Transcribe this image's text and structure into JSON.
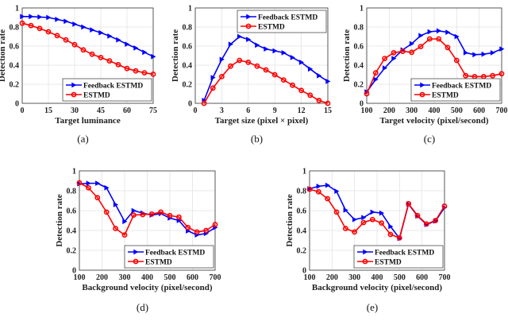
{
  "colors": {
    "feedback": "#0000ff",
    "estmd": "#ff0000",
    "grid": "#e3e3e3"
  },
  "chart_data": [
    {
      "type": "line",
      "caption": "(a)",
      "xlabel": "Target luminance",
      "ylabel": "Detection rate",
      "xlim": [
        0,
        75
      ],
      "ylim": [
        0,
        1
      ],
      "xticks": [
        0,
        15,
        30,
        45,
        60,
        75
      ],
      "yticks": [
        0,
        0.2,
        0.4,
        0.6,
        0.8,
        1
      ],
      "grid": true,
      "legend": "bottom-right",
      "x": [
        0,
        5,
        10,
        15,
        20,
        25,
        30,
        35,
        40,
        45,
        50,
        55,
        60,
        65,
        70,
        75
      ],
      "series": [
        {
          "name": "Feedback ESTMD",
          "marker": "triangle-right",
          "values": [
            0.91,
            0.91,
            0.905,
            0.9,
            0.88,
            0.86,
            0.83,
            0.8,
            0.77,
            0.74,
            0.705,
            0.665,
            0.62,
            0.58,
            0.535,
            0.49
          ]
        },
        {
          "name": "ESTMD",
          "marker": "circle",
          "values": [
            0.84,
            0.815,
            0.785,
            0.75,
            0.71,
            0.665,
            0.615,
            0.56,
            0.515,
            0.48,
            0.445,
            0.405,
            0.365,
            0.34,
            0.32,
            0.305
          ]
        }
      ]
    },
    {
      "type": "line",
      "caption": "(b)",
      "xlabel": "Target size (pixel × pixel)",
      "ylabel": "Detection rate",
      "xlim": [
        0,
        15
      ],
      "ylim": [
        0,
        1
      ],
      "xticks": [
        0,
        3,
        6,
        9,
        12,
        15
      ],
      "yticks": [
        0,
        0.2,
        0.4,
        0.6,
        0.8,
        1
      ],
      "grid": true,
      "legend": "top-right",
      "x": [
        1,
        2,
        3,
        4,
        5,
        6,
        7,
        8,
        9,
        10,
        11,
        12,
        13,
        14,
        15
      ],
      "series": [
        {
          "name": "Feedback ESTMD",
          "marker": "triangle-right",
          "values": [
            0.03,
            0.27,
            0.46,
            0.62,
            0.7,
            0.67,
            0.61,
            0.57,
            0.55,
            0.53,
            0.48,
            0.43,
            0.36,
            0.29,
            0.23
          ]
        },
        {
          "name": "ESTMD",
          "marker": "circle",
          "values": [
            0,
            0.16,
            0.28,
            0.39,
            0.45,
            0.43,
            0.39,
            0.35,
            0.3,
            0.245,
            0.19,
            0.135,
            0.085,
            0.03,
            0
          ]
        }
      ]
    },
    {
      "type": "line",
      "caption": "(c)",
      "xlabel": "Target velocity (pixel/second)",
      "ylabel": "Detection rate",
      "xlim": [
        100,
        700
      ],
      "ylim": [
        0,
        1
      ],
      "xticks": [
        100,
        200,
        300,
        400,
        500,
        600,
        700
      ],
      "yticks": [
        0,
        0.2,
        0.4,
        0.6,
        0.8,
        1
      ],
      "grid": true,
      "legend": "bottom-right",
      "x": [
        100,
        140,
        180,
        220,
        260,
        300,
        340,
        380,
        420,
        460,
        500,
        540,
        580,
        620,
        660,
        700
      ],
      "series": [
        {
          "name": "Feedback ESTMD",
          "marker": "triangle-right",
          "values": [
            0.12,
            0.25,
            0.37,
            0.47,
            0.56,
            0.625,
            0.71,
            0.75,
            0.76,
            0.745,
            0.7,
            0.53,
            0.51,
            0.515,
            0.53,
            0.57
          ]
        },
        {
          "name": "ESTMD",
          "marker": "circle",
          "values": [
            0.1,
            0.32,
            0.47,
            0.53,
            0.545,
            0.535,
            0.595,
            0.675,
            0.675,
            0.585,
            0.45,
            0.29,
            0.28,
            0.28,
            0.29,
            0.31
          ]
        }
      ]
    },
    {
      "type": "line",
      "caption": "(d)",
      "xlabel": "Background velocity (pixel/second)",
      "ylabel": "Detection rate",
      "xlim": [
        100,
        700
      ],
      "ylim": [
        0,
        1
      ],
      "xticks": [
        100,
        200,
        300,
        400,
        500,
        600,
        700
      ],
      "yticks": [
        0,
        0.2,
        0.4,
        0.6,
        0.8,
        1
      ],
      "grid": true,
      "legend": "bottom-right",
      "x": [
        100,
        140,
        180,
        220,
        260,
        300,
        340,
        380,
        420,
        460,
        500,
        540,
        580,
        620,
        660,
        700
      ],
      "series": [
        {
          "name": "Feedback ESTMD",
          "marker": "triangle-right",
          "values": [
            0.87,
            0.875,
            0.875,
            0.83,
            0.66,
            0.49,
            0.6,
            0.575,
            0.555,
            0.57,
            0.525,
            0.5,
            0.395,
            0.355,
            0.37,
            0.43
          ]
        },
        {
          "name": "ESTMD",
          "marker": "circle",
          "values": [
            0.88,
            0.83,
            0.73,
            0.585,
            0.42,
            0.355,
            0.555,
            0.56,
            0.565,
            0.585,
            0.55,
            0.535,
            0.43,
            0.385,
            0.4,
            0.46
          ]
        }
      ]
    },
    {
      "type": "line",
      "caption": "(e)",
      "xlabel": "Background velocity (pixel/second)",
      "ylabel": "Detection rate",
      "xlim": [
        100,
        700
      ],
      "ylim": [
        0,
        1
      ],
      "xticks": [
        100,
        200,
        300,
        400,
        500,
        600,
        700
      ],
      "yticks": [
        0,
        0.2,
        0.4,
        0.6,
        0.8,
        1
      ],
      "grid": true,
      "legend": "bottom-right",
      "x": [
        100,
        140,
        180,
        220,
        260,
        300,
        340,
        380,
        420,
        460,
        500,
        540,
        580,
        620,
        660,
        700
      ],
      "series": [
        {
          "name": "Feedback ESTMD",
          "marker": "triangle-right",
          "values": [
            0.82,
            0.845,
            0.855,
            0.795,
            0.605,
            0.51,
            0.53,
            0.585,
            0.575,
            0.44,
            0.32,
            0.665,
            0.545,
            0.46,
            0.495,
            0.63
          ]
        },
        {
          "name": "ESTMD",
          "marker": "circle",
          "values": [
            0.815,
            0.79,
            0.72,
            0.585,
            0.42,
            0.385,
            0.48,
            0.51,
            0.475,
            0.36,
            0.325,
            0.67,
            0.55,
            0.465,
            0.5,
            0.645
          ]
        }
      ]
    }
  ]
}
